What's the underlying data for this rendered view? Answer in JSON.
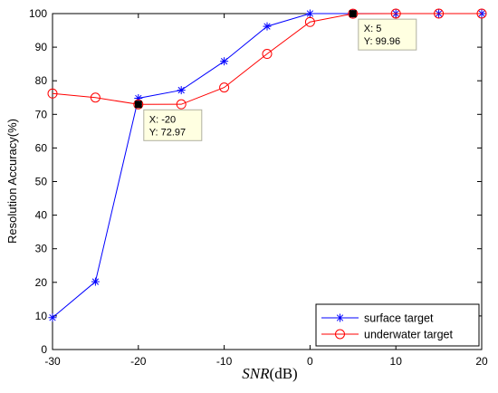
{
  "chart_data": {
    "type": "line",
    "xlabel_var": "SNR",
    "xlabel_unit": "(dB)",
    "ylabel": "Resolution Accuracy(%)",
    "xlim": [
      -30,
      20
    ],
    "ylim": [
      0,
      100
    ],
    "xticks": [
      "-30",
      "-20",
      "-10",
      "0",
      "10",
      "20"
    ],
    "yticks": [
      "0",
      "10",
      "20",
      "30",
      "40",
      "50",
      "60",
      "70",
      "80",
      "90",
      "100"
    ],
    "x": [
      -30,
      -25,
      -20,
      -15,
      -10,
      -5,
      0,
      5,
      10,
      15,
      20
    ],
    "series": [
      {
        "name": "surface target",
        "color": "#0000ff",
        "marker": "asterisk",
        "values": [
          9.5,
          20.2,
          74.8,
          77.2,
          85.8,
          96.2,
          100,
          100,
          100,
          100,
          100
        ]
      },
      {
        "name": "underwater target",
        "color": "#ff0000",
        "marker": "circle",
        "values": [
          76.2,
          75.0,
          72.97,
          73.0,
          78.0,
          88.0,
          97.5,
          99.96,
          100,
          100,
          100
        ]
      }
    ],
    "datatips": [
      {
        "x": -20,
        "y": 72.97,
        "line1": "X: -20",
        "line2": "Y: 72.97"
      },
      {
        "x": 5,
        "y": 99.96,
        "line1": "X: 5",
        "line2": "Y: 99.96"
      }
    ],
    "legend_position": "bottom-right",
    "grid": false
  }
}
